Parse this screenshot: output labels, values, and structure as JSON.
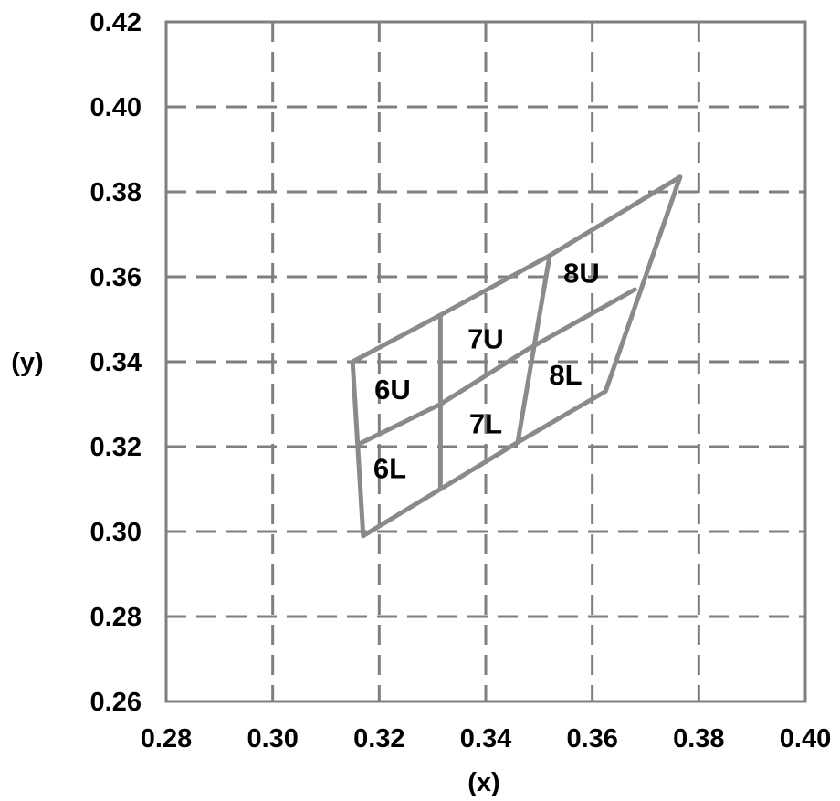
{
  "chart_data": {
    "type": "line",
    "title": "",
    "xlabel": "(x)",
    "ylabel": "(y)",
    "xlim": [
      0.28,
      0.4
    ],
    "ylim": [
      0.26,
      0.42
    ],
    "xticks": [
      "0.28",
      "0.30",
      "0.32",
      "0.34",
      "0.36",
      "0.38",
      "0.40"
    ],
    "yticks": [
      "0.26",
      "0.28",
      "0.30",
      "0.32",
      "0.34",
      "0.36",
      "0.38",
      "0.40",
      "0.42"
    ],
    "grid": true,
    "series": [
      {
        "values": [
          [
            0.315,
            0.34
          ],
          [
            0.317,
            0.299
          ],
          [
            0.3315,
            0.31
          ],
          [
            0.346,
            0.321
          ],
          [
            0.3625,
            0.333
          ],
          [
            0.3765,
            0.3835
          ],
          [
            0.352,
            0.365
          ],
          [
            0.3315,
            0.351
          ],
          [
            0.315,
            0.34
          ]
        ]
      },
      {
        "values": [
          [
            0.316,
            0.3205
          ],
          [
            0.3315,
            0.33
          ],
          [
            0.348,
            0.343
          ],
          [
            0.368,
            0.357
          ]
        ]
      },
      {
        "values": [
          [
            0.3315,
            0.351
          ],
          [
            0.3315,
            0.31
          ]
        ]
      },
      {
        "values": [
          [
            0.352,
            0.365
          ],
          [
            0.346,
            0.321
          ]
        ]
      }
    ],
    "annotations": [
      {
        "text": "6U",
        "x": 0.3225,
        "y": 0.3335
      },
      {
        "text": "6L",
        "x": 0.322,
        "y": 0.315
      },
      {
        "text": "7U",
        "x": 0.34,
        "y": 0.3455
      },
      {
        "text": "7L",
        "x": 0.34,
        "y": 0.3255
      },
      {
        "text": "8U",
        "x": 0.358,
        "y": 0.361
      },
      {
        "text": "8L",
        "x": 0.355,
        "y": 0.337
      }
    ],
    "colors": {
      "lines": "#8a8a8a",
      "grid": "#7f7f7f",
      "text": "#000000"
    }
  }
}
